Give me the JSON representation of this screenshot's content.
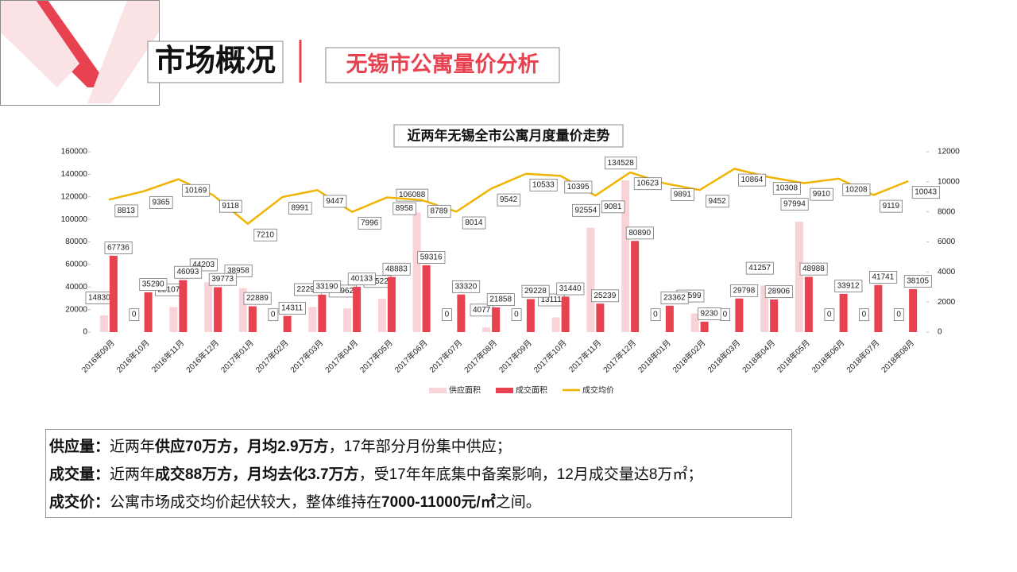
{
  "header": {
    "title": "市场概况",
    "subtitle": "无锡市公寓量价分析"
  },
  "chart_data": {
    "type": "bar-line",
    "title": "近两年无锡全市公寓月度量价走势",
    "categories": [
      "2016年09月",
      "2016年10月",
      "2016年11月",
      "2016年12月",
      "2017年01月",
      "2017年02月",
      "2017年03月",
      "2017年04月",
      "2017年05月",
      "2017年06月",
      "2017年07月",
      "2017年08月",
      "2017年09月",
      "2017年10月",
      "2017年11月",
      "2017年12月",
      "2018年01月",
      "2018年02月",
      "2018年03月",
      "2018年04月",
      "2018年05月",
      "2018年06月",
      "2018年07月",
      "2018年08月"
    ],
    "series": [
      {
        "name": "供应面积",
        "type": "bar",
        "color": "#f9d3d7",
        "values": [
          14830,
          0,
          22107,
          44203,
          38958,
          0,
          22290,
          20962,
          29522,
          106088,
          0,
          4077,
          0,
          13111,
          92554,
          134528,
          0,
          16599,
          0,
          41257,
          97994,
          0,
          0,
          0
        ]
      },
      {
        "name": "成交面积",
        "type": "bar",
        "color": "#e8414f",
        "values": [
          67736,
          35290,
          46093,
          39773,
          22889,
          14311,
          33190,
          40133,
          48883,
          59316,
          33320,
          21858,
          29228,
          31440,
          25239,
          80890,
          23362,
          9230,
          29798,
          28906,
          48988,
          33912,
          41741,
          38105
        ]
      },
      {
        "name": "成交均价",
        "type": "line",
        "axis": "y2",
        "color": "#f0b400",
        "values": [
          8813,
          9365,
          10169,
          9118,
          7210,
          8991,
          9447,
          7996,
          8958,
          8789,
          8014,
          9542,
          10533,
          10395,
          9081,
          10623,
          9891,
          9452,
          10864,
          10308,
          9910,
          10208,
          9119,
          10043
        ]
      }
    ],
    "ylim": [
      0,
      160000
    ],
    "yticks": [
      0,
      20000,
      40000,
      60000,
      80000,
      100000,
      120000,
      140000,
      160000
    ],
    "y2lim": [
      0,
      12000
    ],
    "y2ticks": [
      0,
      2000,
      4000,
      6000,
      8000,
      10000,
      12000
    ],
    "legend": "bottom",
    "grid": false
  },
  "summary": [
    [
      "供应量：",
      "近两年",
      "供应70万方，月均2.9万方",
      "，17年部分月份集中供应；"
    ],
    [
      "成交量：",
      "近两年",
      "成交88万方，月均去化3.7万方",
      "，受17年年底集中备案影响，12月成交量达8万㎡；"
    ],
    [
      "成交价：",
      "公寓市场成交均价起伏较大，整体维持在",
      "7000-11000元/㎡",
      "之间。"
    ]
  ]
}
